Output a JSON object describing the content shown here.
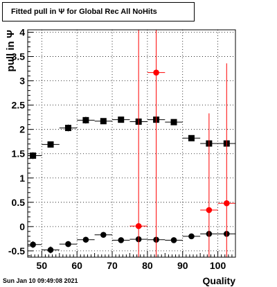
{
  "title": "Fitted pull in  Ψ  for Global Rec All NoHits",
  "timestamp": "Sun Jan 10 09:49:08 2021",
  "colors": {
    "black_series": "#000000",
    "red_series": "#ff0000",
    "grid": "#000000",
    "background": "#ffffff"
  },
  "chart_data": {
    "type": "scatter",
    "xlabel": "Quality",
    "ylabel": "pull in  Ψ",
    "xlim": [
      46,
      105
    ],
    "ylim": [
      -0.63,
      4.05
    ],
    "xticks": [
      50,
      60,
      70,
      80,
      90,
      100
    ],
    "yticks": [
      -0.5,
      0,
      0.5,
      1,
      1.5,
      2,
      2.5,
      3,
      3.5,
      4
    ],
    "grid": true,
    "series": [
      {
        "marker": "square",
        "color": "#000000",
        "points": [
          {
            "x": 47.5,
            "y": 1.46,
            "xerr": 2.5,
            "yerr": 0.07
          },
          {
            "x": 52.5,
            "y": 1.69,
            "xerr": 2.5,
            "yerr": 0.06
          },
          {
            "x": 57.5,
            "y": 2.03,
            "xerr": 2.5,
            "yerr": 0.07
          },
          {
            "x": 62.5,
            "y": 2.19,
            "xerr": 2.5,
            "yerr": 0.07
          },
          {
            "x": 67.5,
            "y": 2.17,
            "xerr": 2.5,
            "yerr": 0.05
          },
          {
            "x": 72.5,
            "y": 2.2,
            "xerr": 2.5,
            "yerr": 0.05
          },
          {
            "x": 77.5,
            "y": 2.16,
            "xerr": 2.5,
            "yerr": 0.05
          },
          {
            "x": 82.5,
            "y": 2.2,
            "xerr": 2.5,
            "yerr": 0.05
          },
          {
            "x": 87.5,
            "y": 2.15,
            "xerr": 2.5,
            "yerr": 0.05
          },
          {
            "x": 92.5,
            "y": 1.82,
            "xerr": 2.5,
            "yerr": 0.03
          },
          {
            "x": 97.5,
            "y": 1.71,
            "xerr": 2.5,
            "yerr": 0.03
          },
          {
            "x": 102.5,
            "y": 1.71,
            "xerr": 2.5,
            "yerr": 0.03
          }
        ]
      },
      {
        "marker": "circle",
        "color": "#000000",
        "points": [
          {
            "x": 47.5,
            "y": -0.37,
            "xerr": 2.5,
            "yerr": 0.07
          },
          {
            "x": 52.5,
            "y": -0.48,
            "xerr": 2.5,
            "yerr": 0.07
          },
          {
            "x": 57.5,
            "y": -0.36,
            "xerr": 2.5,
            "yerr": 0.06
          },
          {
            "x": 62.5,
            "y": -0.27,
            "xerr": 2.5,
            "yerr": 0.05
          },
          {
            "x": 67.5,
            "y": -0.17,
            "xerr": 2.5,
            "yerr": 0.04
          },
          {
            "x": 72.5,
            "y": -0.28,
            "xerr": 2.5,
            "yerr": 0.03
          },
          {
            "x": 77.5,
            "y": -0.26,
            "xerr": 2.5,
            "yerr": 0.03
          },
          {
            "x": 82.5,
            "y": -0.27,
            "xerr": 2.5,
            "yerr": 0.03
          },
          {
            "x": 87.5,
            "y": -0.28,
            "xerr": 2.5,
            "yerr": 0.03
          },
          {
            "x": 92.5,
            "y": -0.2,
            "xerr": 2.5,
            "yerr": 0.03
          },
          {
            "x": 97.5,
            "y": -0.15,
            "xerr": 2.5,
            "yerr": 0.03
          },
          {
            "x": 102.5,
            "y": -0.15,
            "xerr": 2.5,
            "yerr": 0.03
          }
        ]
      },
      {
        "marker": "circle",
        "color": "#ff0000",
        "points": [
          {
            "x": 77.5,
            "y": 0.01,
            "xerr": 2.5,
            "y_low": -0.63,
            "y_high": 4.05
          },
          {
            "x": 82.5,
            "y": 3.17,
            "xerr": 2.5,
            "y_low": -0.63,
            "y_high": 4.05
          },
          {
            "x": 97.5,
            "y": 0.34,
            "xerr": 2.5,
            "y_low": -0.63,
            "y_high": 2.33
          },
          {
            "x": 102.5,
            "y": 0.48,
            "xerr": 2.5,
            "y_low": -0.63,
            "y_high": 3.36
          }
        ]
      }
    ]
  }
}
